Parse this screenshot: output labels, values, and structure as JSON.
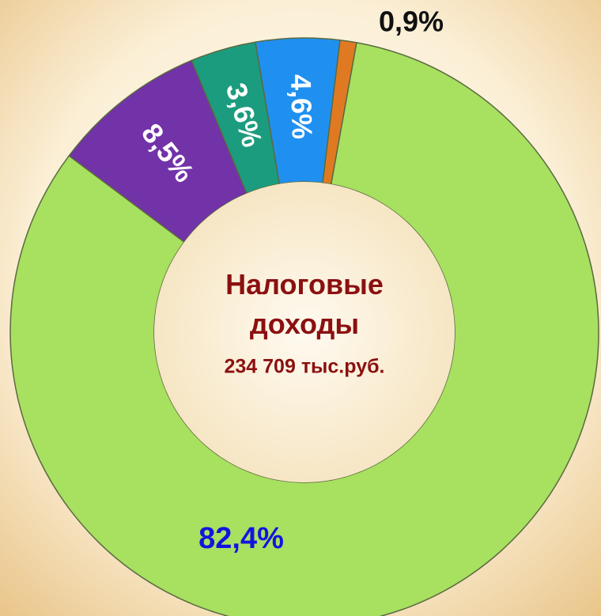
{
  "chart_data": {
    "type": "donut",
    "center_title": "Налоговые доходы",
    "center_subtitle": "234 709 тыс.руб.",
    "categories": [
      null,
      null,
      null,
      null,
      null
    ],
    "values": [
      82.4,
      8.5,
      3.6,
      4.6,
      0.9
    ],
    "value_labels": [
      "82,4%",
      "8,5%",
      "3,6%",
      "4,6%",
      "0,9%"
    ],
    "colors": [
      "#a8e060",
      "#7232a8",
      "#1c9c7e",
      "#2090f0",
      "#e07a22"
    ]
  }
}
